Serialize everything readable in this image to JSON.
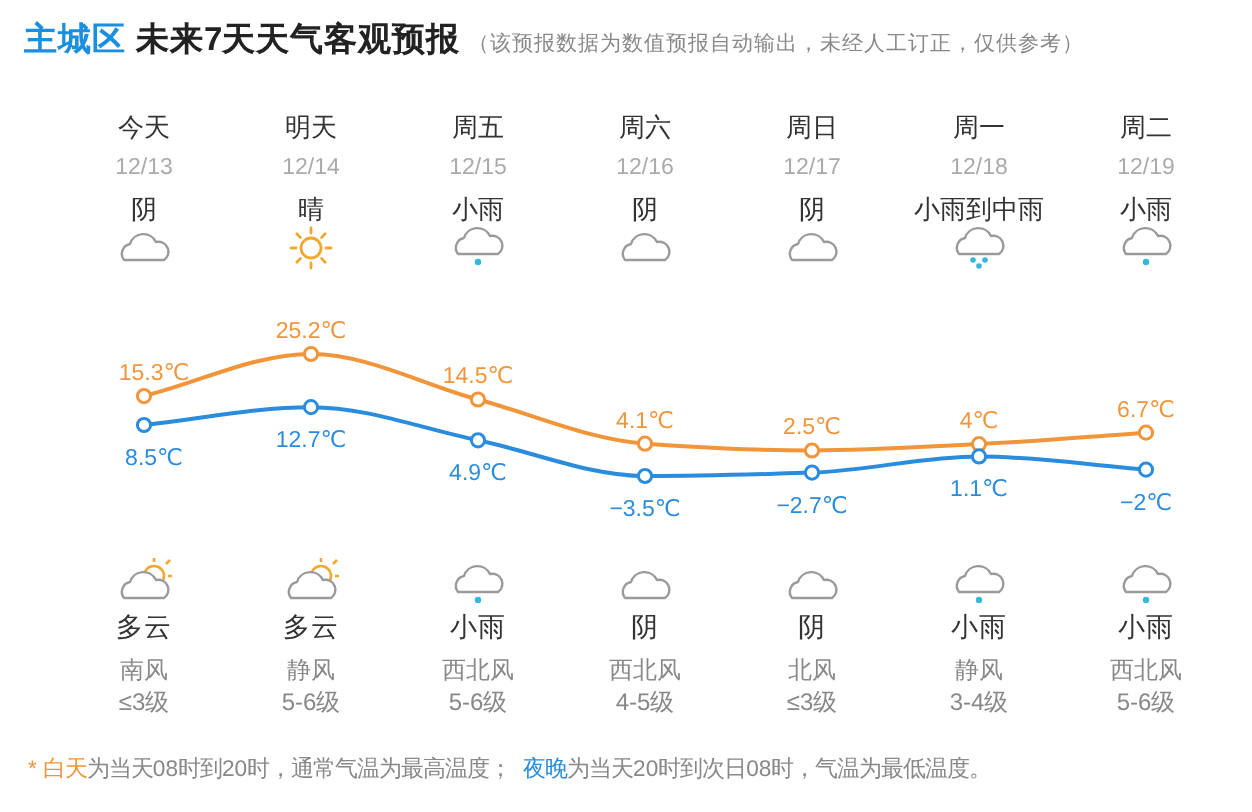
{
  "chart_data": {
    "type": "line",
    "title": "主城区 未来7天天气客观预报",
    "subtitle": "（该预报数据为数值预报自动输出，未经人工订正，仅供参考）",
    "categories": [
      "今天\n12/13\n阴",
      "明天\n12/14\n晴",
      "周五\n12/15\n小雨",
      "周六\n12/16\n阴",
      "周日\n12/17\n阴",
      "周一\n12/18\n小雨到中雨",
      "周二\n12/19\n小雨"
    ],
    "series": [
      {
        "name": "白天",
        "color": "#f0953a",
        "values": [
          15.3,
          25.2,
          14.5,
          4.1,
          2.5,
          4,
          6.7
        ],
        "value_labels": [
          "15.3℃",
          "25.2℃",
          "14.5℃",
          "4.1℃",
          "2.5℃",
          "4℃",
          "6.7℃"
        ]
      },
      {
        "name": "夜晚",
        "color": "#2a8cdc",
        "values": [
          8.5,
          12.7,
          4.9,
          -3.5,
          -2.7,
          1.1,
          -2
        ],
        "value_labels": [
          "8.5℃",
          "12.7℃",
          "4.9℃",
          "−3.5℃",
          "−2.7℃",
          "1.1℃",
          "−2℃"
        ]
      }
    ],
    "annotations": [
      "多云",
      "多云",
      "小雨",
      "阴",
      "阴",
      "小雨",
      "小雨",
      "南风",
      "静风",
      "西北风",
      "西北风",
      "北风",
      "静风",
      "西北风",
      "≤3级",
      "5-6级",
      "5-6级",
      "4-5级",
      "≤3级",
      "3-4级",
      "5-6级",
      "*",
      "为当天08时到20时，通常气温为最高温度；",
      "为当天20时到次日08时，气温为最低温度。"
    ],
    "marker": "circle",
    "legend": "bottom"
  }
}
